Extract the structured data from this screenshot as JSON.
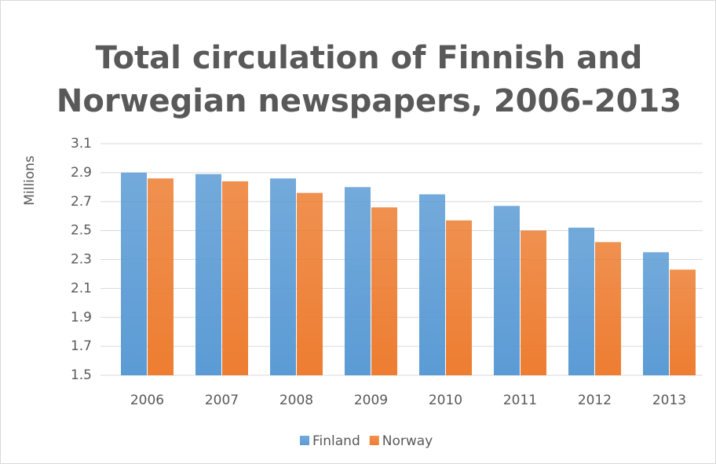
{
  "chart_data": {
    "type": "bar",
    "title": [
      "Total circulation of Finnish and",
      "Norwegian newspapers, 2006-2013"
    ],
    "y_label": "Millions",
    "categories": [
      "2006",
      "2007",
      "2008",
      "2009",
      "2010",
      "2011",
      "2012",
      "2013"
    ],
    "series": [
      {
        "name": "Finland",
        "color": "#5b9bd5",
        "values": [
          2.9,
          2.89,
          2.86,
          2.8,
          2.75,
          2.67,
          2.52,
          2.35
        ]
      },
      {
        "name": "Norway",
        "color": "#ed7d31",
        "values": [
          2.86,
          2.84,
          2.76,
          2.66,
          2.57,
          2.5,
          2.42,
          2.23
        ]
      }
    ],
    "ylim": [
      1.5,
      3.1
    ],
    "yticks": [
      1.5,
      1.7,
      1.9,
      2.1,
      2.3,
      2.5,
      2.7,
      2.9,
      3.1
    ],
    "grid": true,
    "legend": "bottom"
  }
}
